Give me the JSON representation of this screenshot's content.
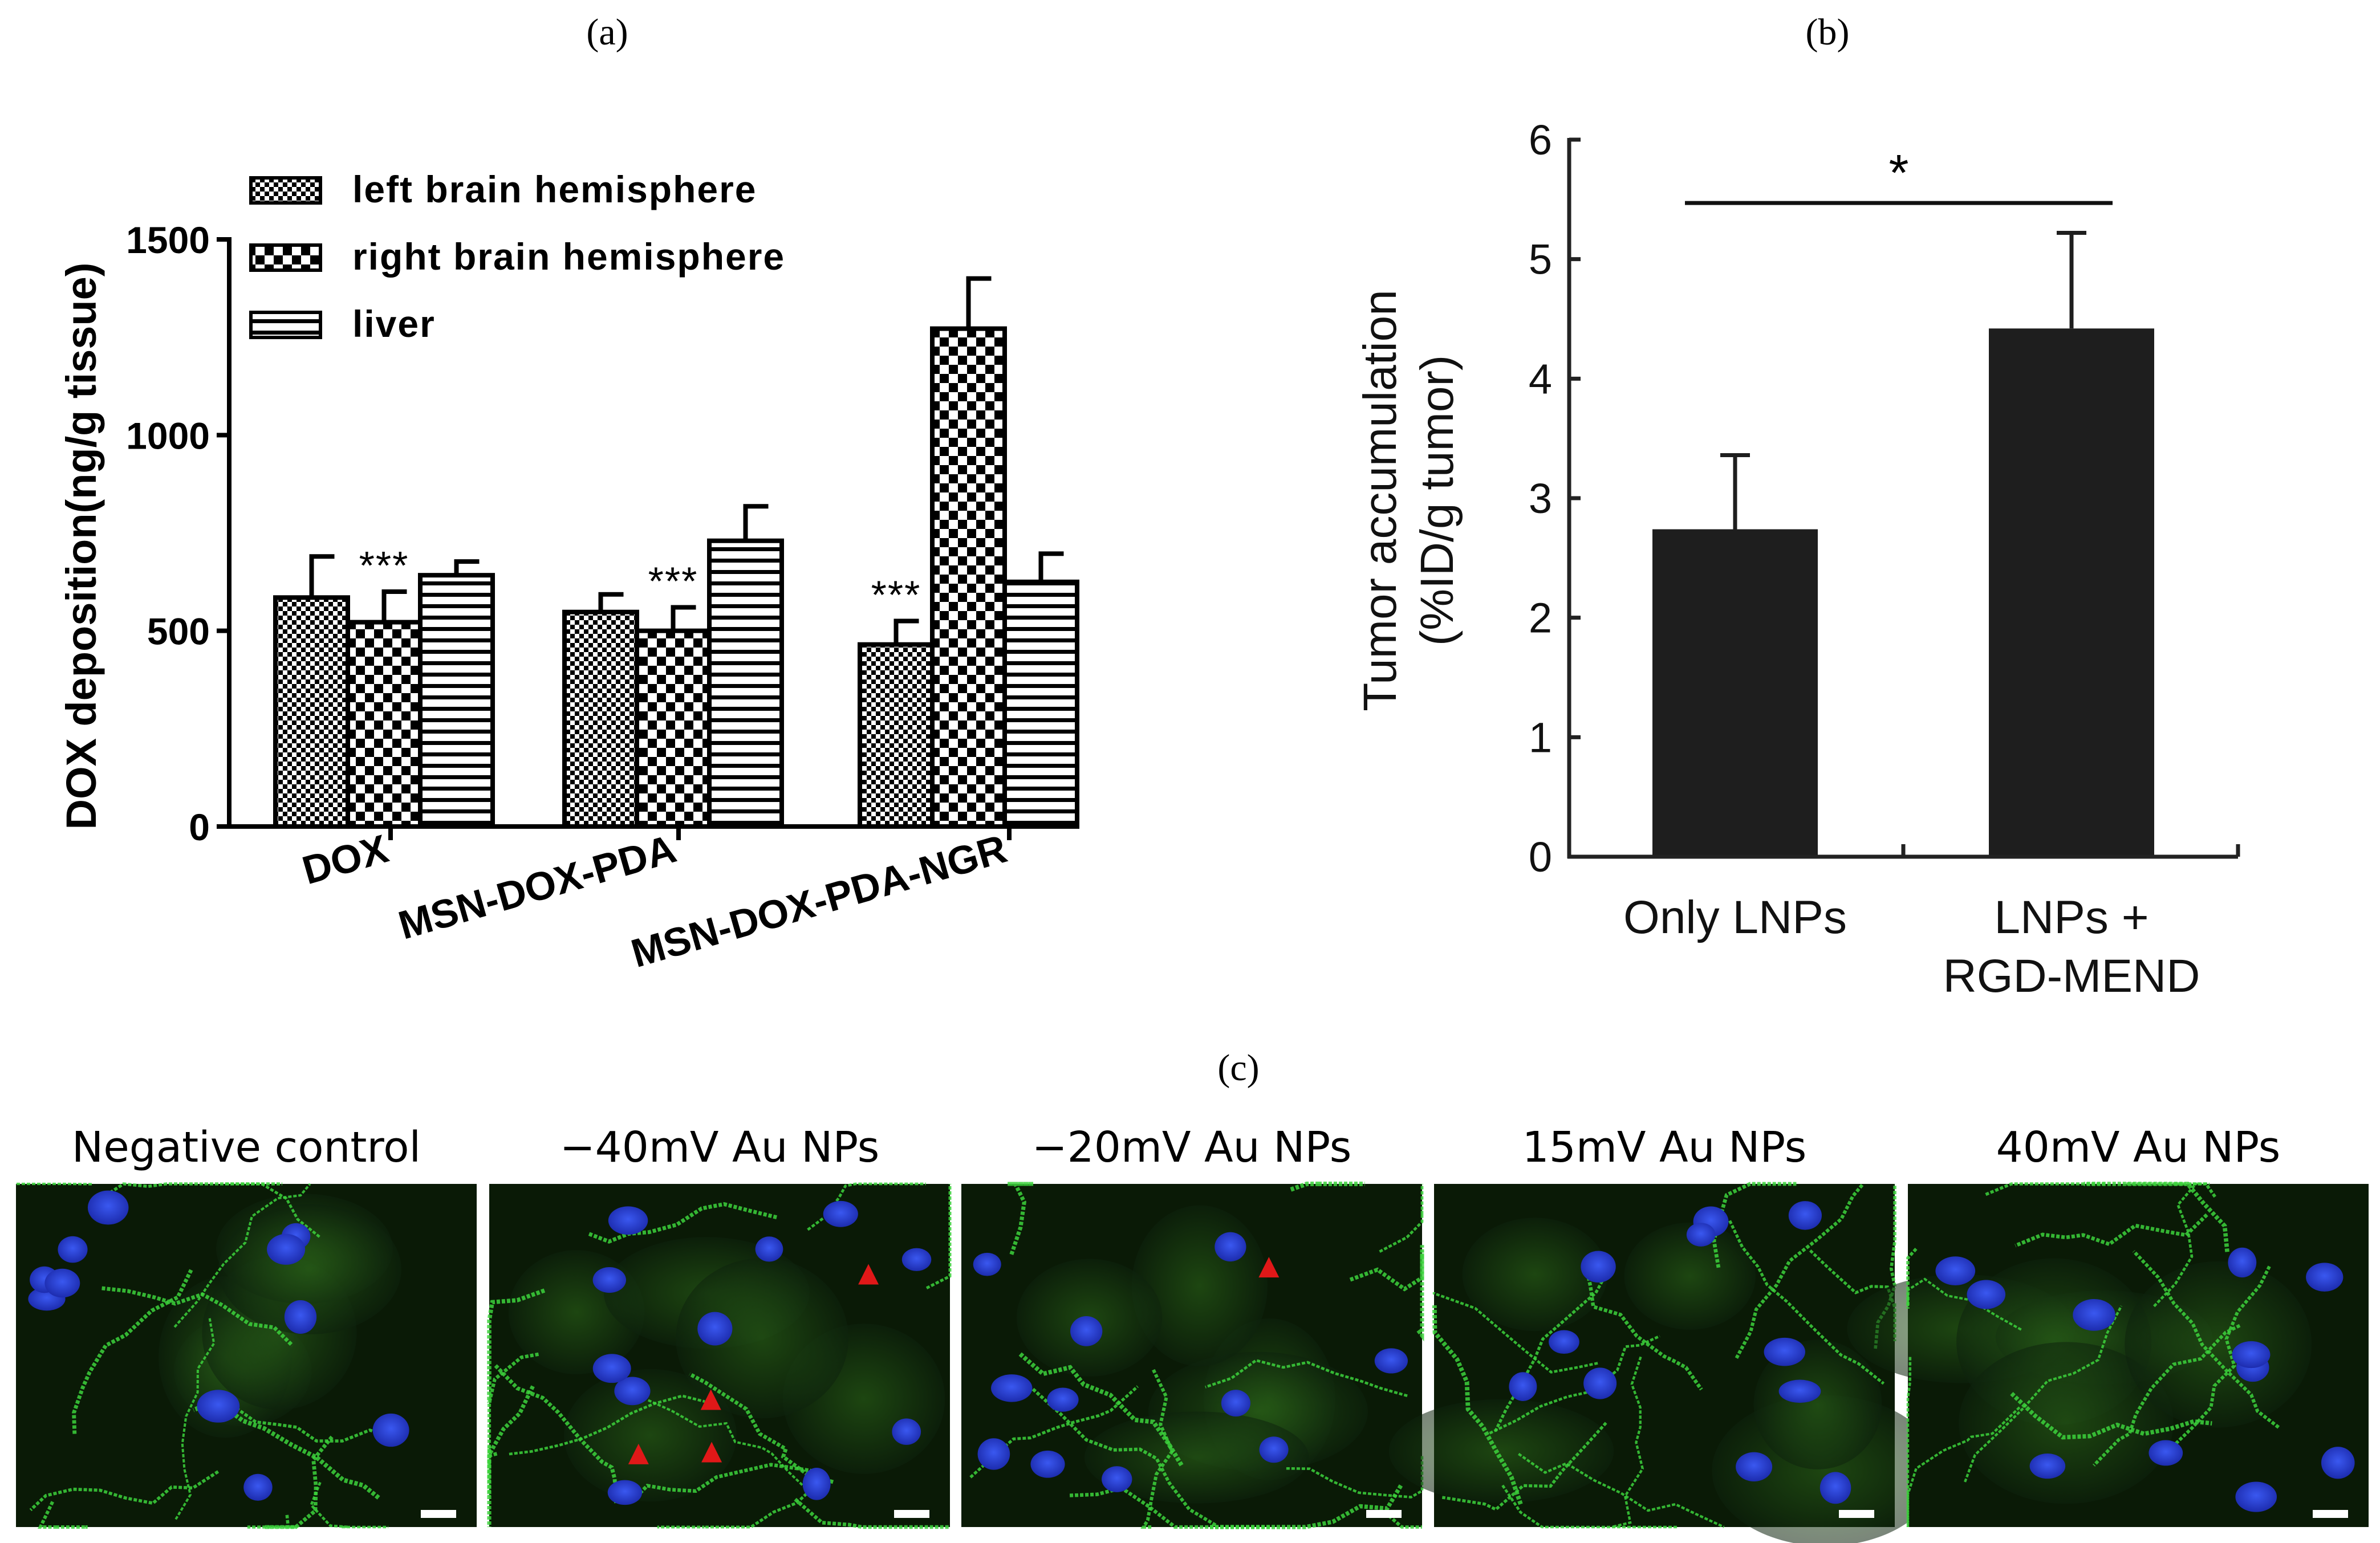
{
  "panel_labels": {
    "a": "(a)",
    "b": "(b)",
    "c": "(c)"
  },
  "colors": {
    "microscopy_bg": "#0a1a06",
    "membrane_green": "#3cd23c",
    "nucleus_blue": "#2638c8",
    "arrow_red": "#e01818",
    "bar_b": "#1e1e1e"
  },
  "chart_data": [
    {
      "panel": "a",
      "type": "bar",
      "ylabel": "DOX deposition(ng/g tissue)",
      "ylim": [
        0,
        1500
      ],
      "yticks": [
        0,
        500,
        1000,
        1500
      ],
      "categories": [
        "DOX",
        "MSN-DOX-PDA",
        "MSN-DOX-PDA-NGR"
      ],
      "series": [
        {
          "name": "left brain hemisphere",
          "pattern": "fine-checker",
          "values": [
            585,
            548,
            465
          ],
          "errors": [
            105,
            45,
            60
          ]
        },
        {
          "name": "right brain hemisphere",
          "pattern": "coarse-checker",
          "values": [
            522,
            500,
            1272
          ],
          "errors": [
            78,
            60,
            128
          ]
        },
        {
          "name": "liver",
          "pattern": "horizontal-stripes",
          "values": [
            642,
            730,
            625
          ],
          "errors": [
            35,
            88,
            72
          ]
        }
      ],
      "annotations": [
        {
          "category": "DOX",
          "series": "right brain hemisphere",
          "text": "***"
        },
        {
          "category": "MSN-DOX-PDA",
          "series": "right brain hemisphere",
          "text": "***"
        },
        {
          "category": "MSN-DOX-PDA-NGR",
          "series": "left brain hemisphere",
          "text": "***"
        }
      ]
    },
    {
      "panel": "b",
      "type": "bar",
      "ylabel_line1": "Tumor accumulation",
      "ylabel_line2": "(%ID/g tumor)",
      "ylim": [
        0,
        6
      ],
      "yticks": [
        0,
        1,
        2,
        3,
        4,
        5,
        6
      ],
      "categories": [
        {
          "line1": "Only LNPs",
          "line2": ""
        },
        {
          "line1": "LNPs +",
          "line2": "RGD-MEND"
        }
      ],
      "values": [
        2.74,
        4.42
      ],
      "errors": [
        0.62,
        0.8
      ],
      "significance": {
        "text": "*",
        "level": 5.47
      }
    }
  ],
  "microscopy": {
    "titles": [
      "Negative control",
      "−40mV Au NPs",
      "−20mV Au NPs",
      "15mV Au NPs",
      "40mV Au NPs"
    ],
    "arrow_counts": [
      0,
      4,
      1,
      0,
      0
    ]
  }
}
